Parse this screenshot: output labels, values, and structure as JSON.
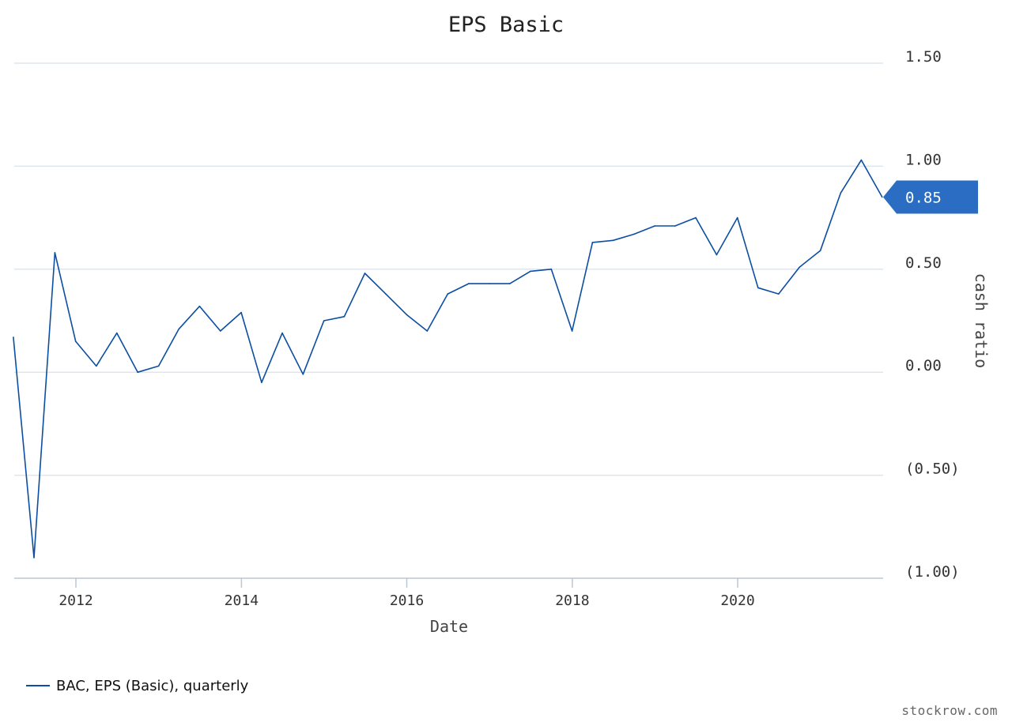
{
  "chart_data": {
    "type": "line",
    "title": "EPS Basic",
    "xlabel": "Date",
    "ylabel": "cash ratio",
    "ylim": [
      -1.0,
      1.5
    ],
    "y_ticks": [
      1.5,
      1.0,
      0.5,
      0.0,
      -0.5,
      -1.0
    ],
    "y_tick_labels": [
      "1.50",
      "1.00",
      "0.50",
      "0.00",
      "(0.50)",
      "(1.00)"
    ],
    "x_ticks": [
      "2012",
      "2014",
      "2016",
      "2018",
      "2020"
    ],
    "grid": true,
    "legend_position": "bottom-left",
    "line_color": "#0b4ea2",
    "badge_color": "#2a6dc3",
    "last_value_label": "0.85",
    "series": [
      {
        "name": "BAC, EPS (Basic), quarterly",
        "x": [
          "2011-03-31",
          "2011-06-30",
          "2011-09-30",
          "2011-12-31",
          "2012-03-31",
          "2012-06-30",
          "2012-09-30",
          "2012-12-31",
          "2013-03-31",
          "2013-06-30",
          "2013-09-30",
          "2013-12-31",
          "2014-03-31",
          "2014-06-30",
          "2014-09-30",
          "2014-12-31",
          "2015-03-31",
          "2015-06-30",
          "2015-09-30",
          "2015-12-31",
          "2016-03-31",
          "2016-06-30",
          "2016-09-30",
          "2016-12-31",
          "2017-03-31",
          "2017-06-30",
          "2017-09-30",
          "2017-12-31",
          "2018-03-31",
          "2018-06-30",
          "2018-09-30",
          "2018-12-31",
          "2019-03-31",
          "2019-06-30",
          "2019-09-30",
          "2019-12-31",
          "2020-03-31",
          "2020-06-30",
          "2020-09-30",
          "2020-12-31",
          "2021-03-31",
          "2021-06-30",
          "2021-09-30"
        ],
        "values": [
          0.17,
          -0.9,
          0.58,
          0.15,
          0.03,
          0.19,
          0.0,
          0.03,
          0.21,
          0.32,
          0.2,
          0.29,
          -0.05,
          0.19,
          -0.01,
          0.25,
          0.27,
          0.48,
          0.38,
          0.28,
          0.2,
          0.38,
          0.43,
          0.43,
          0.43,
          0.49,
          0.5,
          0.2,
          0.63,
          0.64,
          0.67,
          0.71,
          0.71,
          0.75,
          0.57,
          0.75,
          0.41,
          0.38,
          0.51,
          0.59,
          0.87,
          1.03,
          0.85
        ]
      }
    ]
  },
  "footer": {
    "credit": "stockrow.com"
  }
}
